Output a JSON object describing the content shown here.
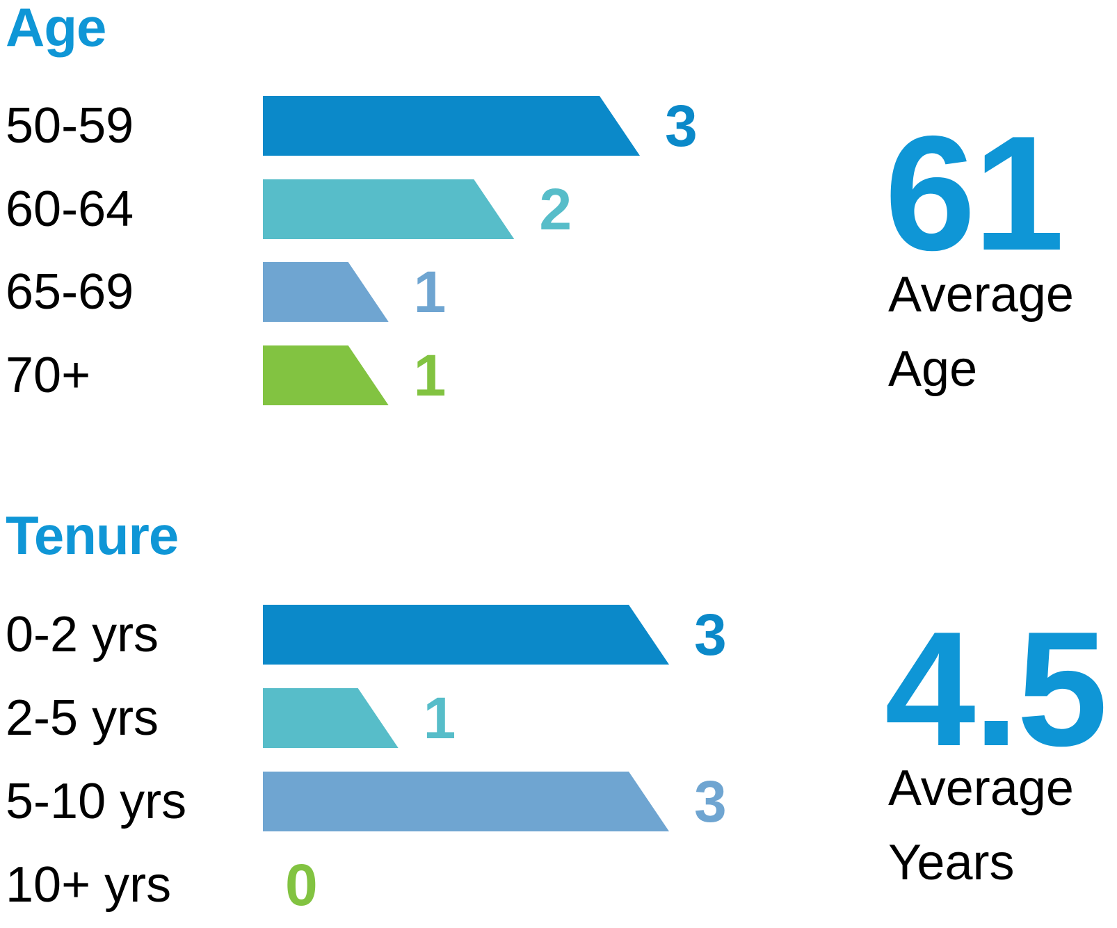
{
  "accent_blue": "#0f96d6",
  "chart_data": [
    {
      "type": "bar",
      "orientation": "horizontal",
      "title": "Age",
      "categories": [
        "50-59",
        "60-64",
        "65-69",
        "70+"
      ],
      "values": [
        3,
        2,
        1,
        1
      ],
      "colors": [
        "#0b89c9",
        "#57bdc9",
        "#6fa5d1",
        "#82c341"
      ],
      "xlim": [
        0,
        3
      ],
      "grid": false,
      "legend": "none",
      "data_labels": true,
      "stat": {
        "value": "61",
        "label_lines": [
          "Average",
          "Age"
        ]
      }
    },
    {
      "type": "bar",
      "orientation": "horizontal",
      "title": "Tenure",
      "categories": [
        "0-2 yrs",
        "2-5 yrs",
        "5-10 yrs",
        "10+ yrs"
      ],
      "values": [
        3,
        1,
        3,
        0
      ],
      "colors": [
        "#0b89c9",
        "#57bdc9",
        "#6fa5d1",
        "#82c341"
      ],
      "xlim": [
        0,
        3
      ],
      "grid": false,
      "legend": "none",
      "data_labels": true,
      "stat": {
        "value": "4.5",
        "label_lines": [
          "Average",
          "Years"
        ]
      }
    }
  ]
}
